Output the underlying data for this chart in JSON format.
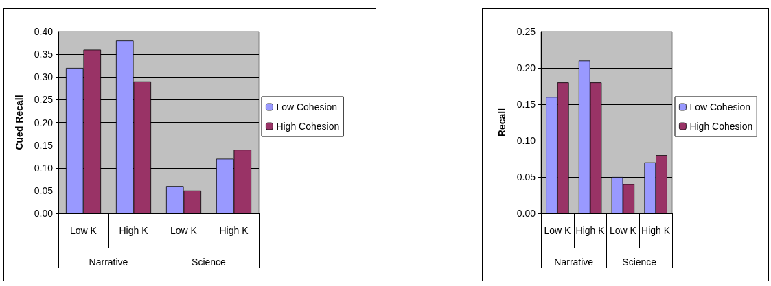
{
  "chart_data": [
    {
      "type": "bar",
      "ylabel": "Cued Recall",
      "categories": [
        "Low K",
        "High K",
        "Low K",
        "High K"
      ],
      "annotations": [
        "Narrative",
        "Science"
      ],
      "series": [
        {
          "name": "Low Cohesion",
          "color": "#9999ff",
          "values": [
            0.32,
            0.38,
            0.06,
            0.12
          ]
        },
        {
          "name": "High Cohesion",
          "color": "#993366",
          "values": [
            0.36,
            0.29,
            0.05,
            0.14
          ]
        }
      ],
      "ylim": [
        0,
        0.4
      ],
      "yticks": [
        {
          "value": 0,
          "label": "0.00"
        },
        {
          "value": 0.05,
          "label": "0.05"
        },
        {
          "value": 0.1,
          "label": "0.10"
        },
        {
          "value": 0.15,
          "label": "0.15"
        },
        {
          "value": 0.2,
          "label": "0.20"
        },
        {
          "value": 0.25,
          "label": "0.25"
        },
        {
          "value": 0.3,
          "label": "0.30"
        },
        {
          "value": 0.35,
          "label": "0.35"
        },
        {
          "value": 0.4,
          "label": "0.40"
        }
      ],
      "grid": "y",
      "legend": "right"
    },
    {
      "type": "bar",
      "ylabel": "Recall",
      "categories": [
        "Low K",
        "High K",
        "Low K",
        "High K"
      ],
      "annotations": [
        "Narrative",
        "Science"
      ],
      "series": [
        {
          "name": "Low Cohesion",
          "color": "#9999ff",
          "values": [
            0.16,
            0.21,
            0.05,
            0.07
          ]
        },
        {
          "name": "High Cohesion",
          "color": "#993366",
          "values": [
            0.18,
            0.18,
            0.04,
            0.08
          ]
        }
      ],
      "ylim": [
        0,
        0.25
      ],
      "yticks": [
        {
          "value": 0,
          "label": "0.00"
        },
        {
          "value": 0.05,
          "label": "0.05"
        },
        {
          "value": 0.1,
          "label": "0.10"
        },
        {
          "value": 0.15,
          "label": "0.15"
        },
        {
          "value": 0.2,
          "label": "0.20"
        },
        {
          "value": 0.25,
          "label": "0.25"
        }
      ],
      "grid": "y",
      "legend": "right"
    }
  ]
}
